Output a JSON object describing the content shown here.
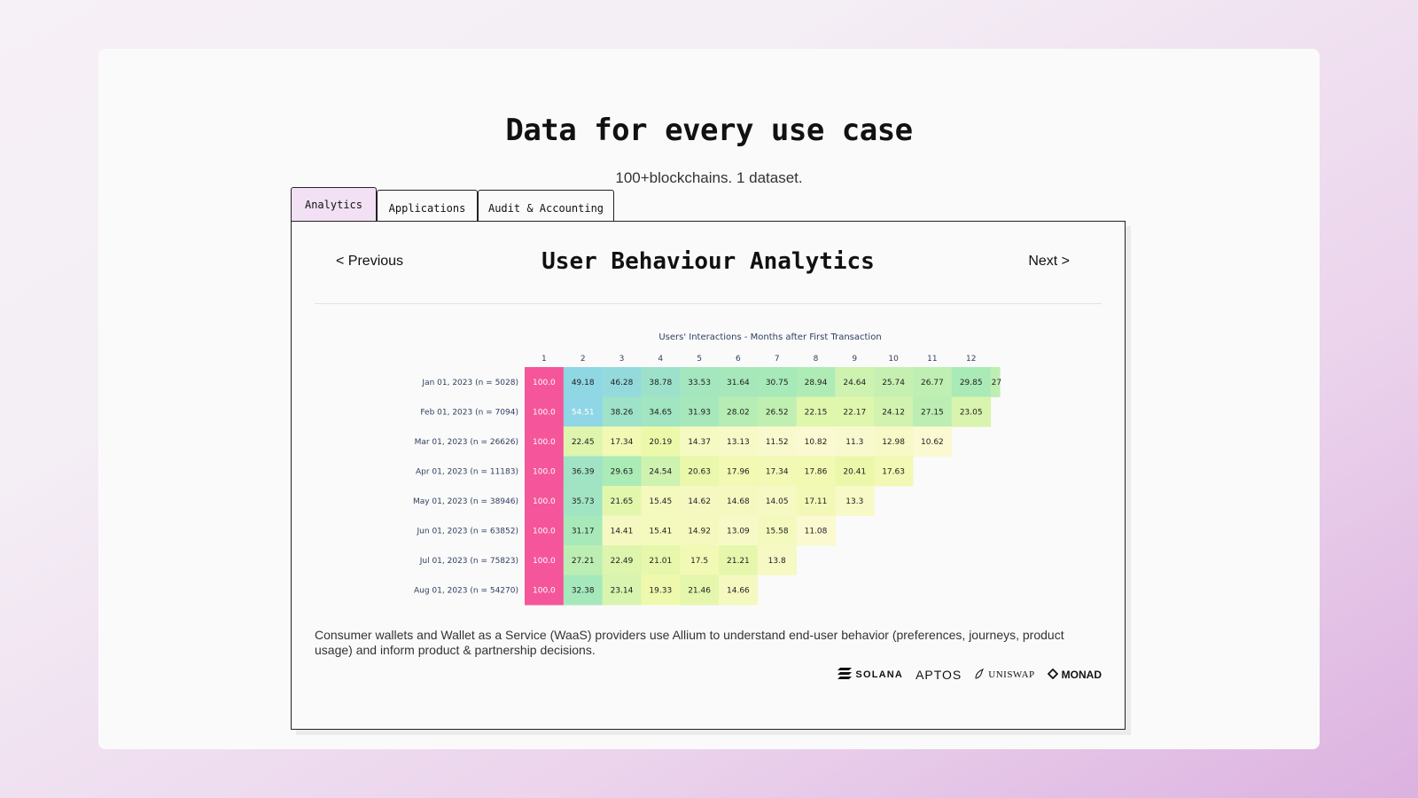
{
  "page": {
    "headline": "Data for every use case",
    "subheadline": "100+blockchains. 1 dataset."
  },
  "tabs": [
    {
      "label": "Analytics",
      "active": true
    },
    {
      "label": "Applications",
      "active": false
    },
    {
      "label": "Audit & Accounting",
      "active": false
    }
  ],
  "panel": {
    "prev_label": "< Previous",
    "next_label": "Next >",
    "title": "User Behaviour Analytics",
    "description": "Consumer wallets and Wallet as a Service (WaaS) providers use Allium to understand end-user behavior (preferences, journeys, product usage) and inform product & partnership decisions.",
    "logos": [
      {
        "name": "SOLANA",
        "icon": "solana-icon"
      },
      {
        "name": "APTOS",
        "icon": "aptos-icon"
      },
      {
        "name": "UNISWAP",
        "icon": "uniswap-icon"
      },
      {
        "name": "MONAD",
        "icon": "monad-icon"
      }
    ]
  },
  "chart_data": {
    "type": "heatmap",
    "title": "Users' Interactions - Months after First Transaction",
    "columns": [
      "1",
      "2",
      "3",
      "4",
      "5",
      "6",
      "7",
      "8",
      "9",
      "10",
      "11",
      "12"
    ],
    "rows": [
      {
        "label": "Jan 01, 2023 (n = 5028)",
        "values": [
          100.0,
          49.18,
          46.28,
          38.78,
          33.53,
          31.64,
          30.75,
          28.94,
          24.64,
          25.74,
          26.77,
          29.85
        ],
        "overflow_text": "27"
      },
      {
        "label": "Feb 01, 2023 (n = 7094)",
        "values": [
          100.0,
          54.51,
          38.26,
          34.65,
          31.93,
          28.02,
          26.52,
          22.15,
          22.17,
          24.12,
          27.15,
          23.05
        ]
      },
      {
        "label": "Mar 01, 2023 (n = 26626)",
        "values": [
          100.0,
          22.45,
          17.34,
          20.19,
          14.37,
          13.13,
          11.52,
          10.82,
          11.3,
          12.98,
          10.62
        ]
      },
      {
        "label": "Apr 01, 2023 (n = 11183)",
        "values": [
          100.0,
          36.39,
          29.63,
          24.54,
          20.63,
          17.96,
          17.34,
          17.86,
          20.41,
          17.63
        ]
      },
      {
        "label": "May 01, 2023 (n = 38946)",
        "values": [
          100.0,
          35.73,
          21.65,
          15.45,
          14.62,
          14.68,
          14.05,
          17.11,
          13.3
        ]
      },
      {
        "label": "Jun 01, 2023 (n = 63852)",
        "values": [
          100.0,
          31.17,
          14.41,
          15.41,
          14.92,
          13.09,
          15.58,
          11.08
        ]
      },
      {
        "label": "Jul 01, 2023 (n = 75823)",
        "values": [
          100.0,
          27.21,
          22.49,
          21.01,
          17.5,
          21.21,
          13.8
        ]
      },
      {
        "label": "Aug 01, 2023 (n = 54270)",
        "values": [
          100.0,
          32.38,
          23.14,
          19.33,
          21.46,
          14.66
        ]
      }
    ],
    "colors": {
      "max": "#f5559a",
      "high": "#8fd6e6",
      "mid": "#a8eab6",
      "low": "#eef9aa",
      "min": "#fbf9d4"
    }
  }
}
